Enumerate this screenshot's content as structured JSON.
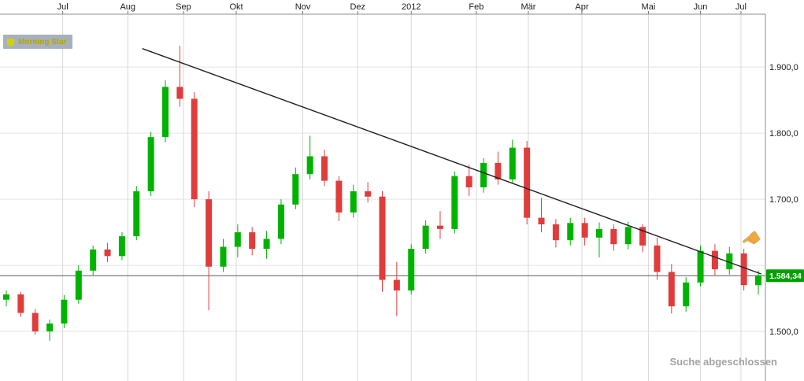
{
  "legend": {
    "label": "Morning Star",
    "swatch_color": "#d2d200",
    "text_color": "#b5a500",
    "bg_color": "#a7b1bb"
  },
  "status_bar": {
    "text": "Suche abgeschlossen"
  },
  "price_badge": {
    "text": "1.584,34",
    "value": 1584.34,
    "color": "#00a000"
  },
  "y_axis": {
    "ticks": [
      {
        "label": "1.900,0",
        "value": 1900
      },
      {
        "label": "1.800,0",
        "value": 1800
      },
      {
        "label": "1.700,0",
        "value": 1700
      },
      {
        "label": "1.500,0",
        "value": 1500
      }
    ]
  },
  "chart_data": {
    "type": "candlestick",
    "timeframe": "weekly",
    "ylim": [
      1425,
      1980
    ],
    "up_color": "#00b300",
    "down_color": "#e03c3c",
    "grid_prices": [
      1900,
      1800,
      1700,
      1600,
      1500
    ],
    "price_line": 1584.34,
    "x_ticks": [
      {
        "label": "Jul",
        "i": 3.9
      },
      {
        "label": "Aug",
        "i": 8.4
      },
      {
        "label": "Sep",
        "i": 12.25
      },
      {
        "label": "Okt",
        "i": 15.9
      },
      {
        "label": "Nov",
        "i": 20.5
      },
      {
        "label": "Dez",
        "i": 24.3
      },
      {
        "label": "2012",
        "i": 28.0
      },
      {
        "label": "Feb",
        "i": 32.5
      },
      {
        "label": "Mär",
        "i": 36.1
      },
      {
        "label": "Apr",
        "i": 39.8
      },
      {
        "label": "Mai",
        "i": 44.4
      },
      {
        "label": "Jun",
        "i": 48.0
      },
      {
        "label": "Jul",
        "i": 50.8
      }
    ],
    "candles": [
      [
        1548,
        1562,
        1538,
        1556
      ],
      [
        1556,
        1560,
        1522,
        1528
      ],
      [
        1528,
        1534,
        1495,
        1500
      ],
      [
        1500,
        1518,
        1486,
        1512
      ],
      [
        1512,
        1555,
        1505,
        1548
      ],
      [
        1548,
        1600,
        1542,
        1592
      ],
      [
        1592,
        1630,
        1585,
        1624
      ],
      [
        1624,
        1634,
        1605,
        1614
      ],
      [
        1614,
        1650,
        1608,
        1644
      ],
      [
        1644,
        1720,
        1638,
        1712
      ],
      [
        1712,
        1802,
        1705,
        1794
      ],
      [
        1794,
        1880,
        1786,
        1870
      ],
      [
        1870,
        1932,
        1840,
        1852
      ],
      [
        1852,
        1862,
        1688,
        1700
      ],
      [
        1700,
        1712,
        1532,
        1598
      ],
      [
        1598,
        1640,
        1590,
        1628
      ],
      [
        1628,
        1662,
        1612,
        1650
      ],
      [
        1650,
        1658,
        1615,
        1625
      ],
      [
        1625,
        1652,
        1610,
        1640
      ],
      [
        1640,
        1700,
        1632,
        1692
      ],
      [
        1692,
        1748,
        1685,
        1738
      ],
      [
        1738,
        1796,
        1730,
        1765
      ],
      [
        1765,
        1775,
        1720,
        1728
      ],
      [
        1728,
        1735,
        1667,
        1680
      ],
      [
        1680,
        1722,
        1672,
        1712
      ],
      [
        1712,
        1726,
        1695,
        1704
      ],
      [
        1704,
        1712,
        1560,
        1578
      ],
      [
        1578,
        1605,
        1523,
        1562
      ],
      [
        1562,
        1632,
        1556,
        1625
      ],
      [
        1625,
        1668,
        1618,
        1660
      ],
      [
        1660,
        1682,
        1640,
        1655
      ],
      [
        1655,
        1742,
        1648,
        1735
      ],
      [
        1735,
        1752,
        1705,
        1718
      ],
      [
        1718,
        1762,
        1710,
        1755
      ],
      [
        1755,
        1772,
        1722,
        1730
      ],
      [
        1730,
        1790,
        1725,
        1778
      ],
      [
        1778,
        1788,
        1662,
        1672
      ],
      [
        1672,
        1702,
        1650,
        1662
      ],
      [
        1662,
        1670,
        1627,
        1638
      ],
      [
        1638,
        1672,
        1630,
        1664
      ],
      [
        1664,
        1672,
        1630,
        1642
      ],
      [
        1642,
        1665,
        1612,
        1655
      ],
      [
        1655,
        1662,
        1622,
        1632
      ],
      [
        1632,
        1666,
        1624,
        1658
      ],
      [
        1658,
        1662,
        1620,
        1630
      ],
      [
        1630,
        1642,
        1578,
        1590
      ],
      [
        1590,
        1602,
        1527,
        1538
      ],
      [
        1538,
        1582,
        1530,
        1574
      ],
      [
        1574,
        1630,
        1568,
        1622
      ],
      [
        1622,
        1632,
        1585,
        1594
      ],
      [
        1594,
        1628,
        1586,
        1618
      ],
      [
        1618,
        1625,
        1562,
        1570
      ],
      [
        1570,
        1592,
        1556,
        1584.34
      ]
    ],
    "trendline": {
      "from_index": 9.4,
      "from_price": 1928,
      "to_index": 52.2,
      "to_price": 1587
    }
  }
}
